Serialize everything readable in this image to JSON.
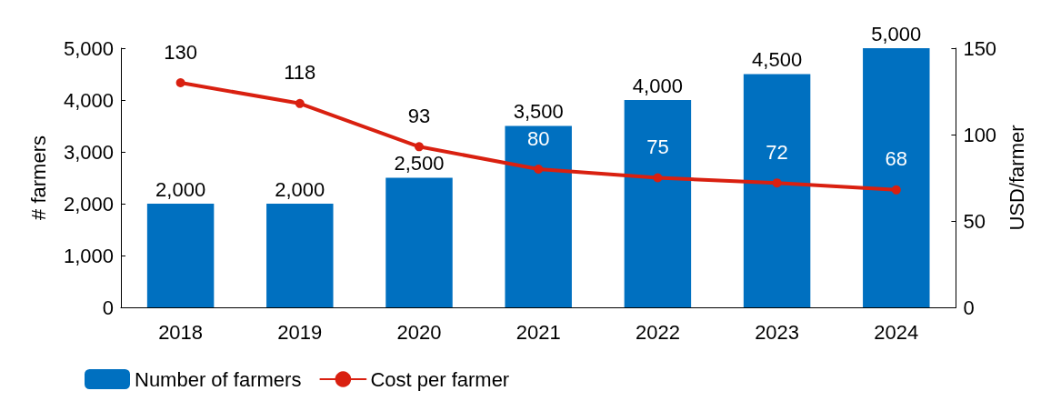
{
  "chart_data": {
    "type": "bar",
    "categories": [
      "2018",
      "2019",
      "2020",
      "2021",
      "2022",
      "2023",
      "2024"
    ],
    "series": [
      {
        "name": "Number of farmers",
        "color": "#0070c0",
        "values": [
          2000,
          2000,
          2500,
          3500,
          4000,
          4500,
          5000
        ],
        "value_labels": [
          "2,000",
          "2,000",
          "2,500",
          "3,500",
          "4,000",
          "4,500",
          "5,000"
        ]
      },
      {
        "name": "Cost per farmer",
        "type": "line",
        "axis": "y2",
        "color": "#d92010",
        "values": [
          130,
          118,
          93,
          80,
          75,
          72,
          68
        ],
        "value_labels": [
          "130",
          "118",
          "93",
          "80",
          "75",
          "72",
          "68"
        ]
      }
    ],
    "ylabel": "# farmers",
    "y2label": "USD/farmer",
    "ylim": [
      0,
      5000
    ],
    "yticks": [
      0,
      {
        "value": 1000,
        "label": "1,000"
      },
      {
        "value": 2000,
        "label": "2,000"
      },
      {
        "value": 3000,
        "label": "3,000"
      },
      {
        "value": 4000,
        "label": "4,000"
      },
      {
        "value": 5000,
        "label": "5,000"
      }
    ],
    "y2lim": [
      0,
      150
    ],
    "y2ticks": [
      0,
      50,
      100,
      150
    ],
    "grid": false,
    "legend": "bottom",
    "marker": "circle",
    "line_style": "solid"
  }
}
